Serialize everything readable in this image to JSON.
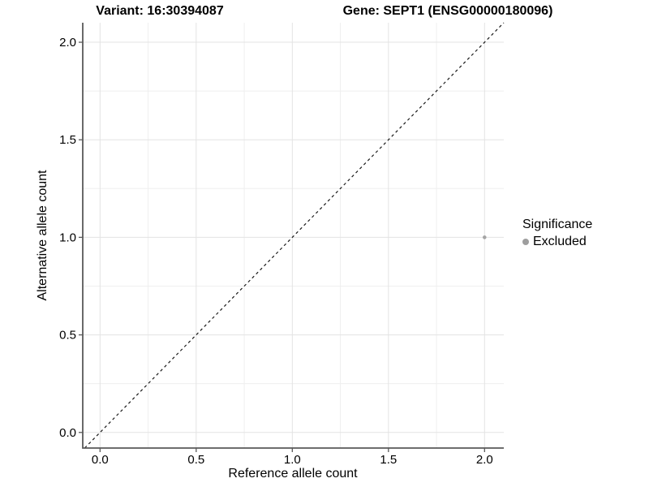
{
  "chart_data": {
    "type": "scatter",
    "title_left": "Variant: 16:30394087",
    "title_right": "Gene: SEPT1 (ENSG00000180096)",
    "xlabel": "Reference allele count",
    "ylabel": "Alternative allele count",
    "xlim": [
      -0.09,
      2.1
    ],
    "ylim": [
      -0.08,
      2.1
    ],
    "x_ticks": [
      0.0,
      0.5,
      1.0,
      1.5,
      2.0
    ],
    "y_ticks": [
      0.0,
      0.5,
      1.0,
      1.5,
      2.0
    ],
    "x_tick_labels": [
      "0.0",
      "0.5",
      "1.0",
      "1.5",
      "2.0"
    ],
    "y_tick_labels": [
      "0.0",
      "0.5",
      "1.0",
      "1.5",
      "2.0"
    ],
    "grid": true,
    "minor_grid_step": 0.25,
    "series": [
      {
        "name": "Excluded",
        "color": "#a4a4a4",
        "points": [
          {
            "x": 2.0,
            "y": 1.0
          }
        ]
      }
    ],
    "reference_line": {
      "type": "identity",
      "style": "dashed",
      "color": "#1a1a1a"
    },
    "legend": {
      "title": "Significance",
      "position": "right",
      "items": [
        {
          "label": "Excluded",
          "color": "#9e9e9e",
          "marker": "circle"
        }
      ]
    },
    "colors": {
      "panel_bg": "#ffffff",
      "grid_major": "#e3e3e3",
      "grid_minor": "#efefef",
      "axis_line": "#595959",
      "tick_label": "#000000"
    }
  }
}
